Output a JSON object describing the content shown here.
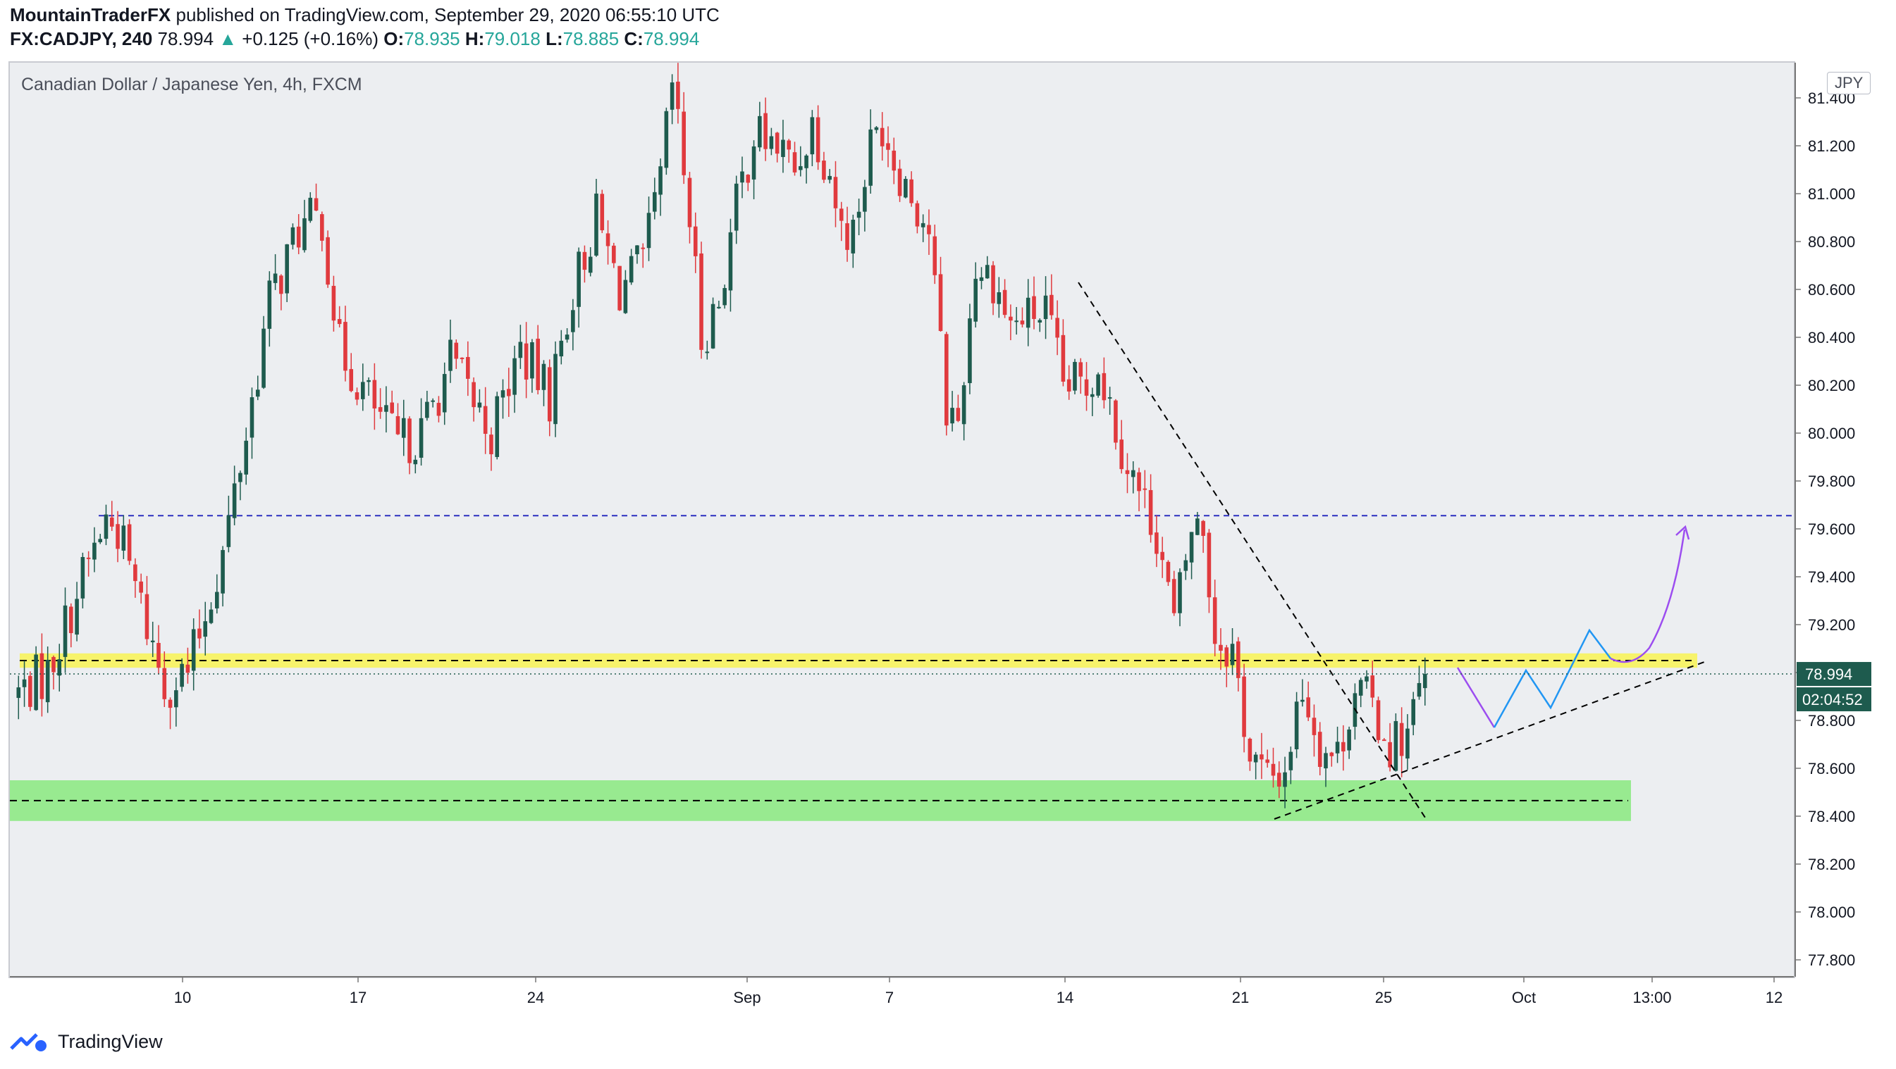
{
  "header": {
    "author": "MountainTraderFX",
    "published": "published on TradingView.com, September 29, 2020 06:55:10 UTC",
    "symbol": "FX:CADJPY, 240",
    "last": "78.994",
    "arrow": "▲",
    "change": "+0.125 (+0.16%)",
    "o_label": "O:",
    "o_val": "78.935",
    "h_label": "H:",
    "h_val": "79.018",
    "l_label": "L:",
    "l_val": "78.885",
    "c_label": "C:",
    "c_val": "78.994"
  },
  "pane": {
    "title": "Canadian Dollar / Japanese Yen, 4h, FXCM",
    "currency": "JPY",
    "price_badge": "78.994",
    "countdown_badge": "02:04:52"
  },
  "brand": {
    "name": "TradingView"
  },
  "colors": {
    "up": "#1e5b4e",
    "down": "#e03a3e",
    "yellow_zone": "#f7f36b",
    "green_zone": "#98ea90",
    "resistance_line": "#2b2fbf",
    "projection_purple": "#9c4df0",
    "projection_blue": "#2196f3",
    "badge_bg": "#1e5b4e"
  },
  "chart_data": {
    "type": "candlestick",
    "yaxis": {
      "range": [
        77.65,
        81.55
      ],
      "ticks": [
        "77.800",
        "78.000",
        "78.200",
        "78.400",
        "78.600",
        "78.800",
        "79.000",
        "79.200",
        "79.400",
        "79.600",
        "79.800",
        "80.000",
        "80.200",
        "80.400",
        "80.600",
        "80.800",
        "81.000",
        "81.200",
        "81.400"
      ]
    },
    "xaxis": {
      "ticks": [
        "10",
        "17",
        "24",
        "Sep",
        "7",
        "14",
        "21",
        "25",
        "Oct",
        "13:00",
        "12"
      ]
    },
    "anchors": [
      {
        "i": 0,
        "p": 78.9
      },
      {
        "i": 6,
        "p": 79.0
      },
      {
        "i": 12,
        "p": 79.4
      },
      {
        "i": 16,
        "p": 79.64
      },
      {
        "i": 18,
        "p": 79.6
      },
      {
        "i": 26,
        "p": 78.95
      },
      {
        "i": 30,
        "p": 79.0
      },
      {
        "i": 36,
        "p": 79.5
      },
      {
        "i": 40,
        "p": 80.0
      },
      {
        "i": 44,
        "p": 80.55
      },
      {
        "i": 49,
        "p": 80.85
      },
      {
        "i": 53,
        "p": 80.9
      },
      {
        "i": 56,
        "p": 80.35
      },
      {
        "i": 62,
        "p": 80.1
      },
      {
        "i": 66,
        "p": 79.95
      },
      {
        "i": 70,
        "p": 80.0
      },
      {
        "i": 75,
        "p": 80.3
      },
      {
        "i": 82,
        "p": 80.0
      },
      {
        "i": 87,
        "p": 80.35
      },
      {
        "i": 92,
        "p": 80.15
      },
      {
        "i": 96,
        "p": 80.6
      },
      {
        "i": 100,
        "p": 80.9
      },
      {
        "i": 104,
        "p": 80.6
      },
      {
        "i": 108,
        "p": 80.7
      },
      {
        "i": 111,
        "p": 81.05
      },
      {
        "i": 113,
        "p": 81.45
      },
      {
        "i": 116,
        "p": 80.9
      },
      {
        "i": 118,
        "p": 80.4
      },
      {
        "i": 121,
        "p": 80.55
      },
      {
        "i": 124,
        "p": 80.95
      },
      {
        "i": 127,
        "p": 81.25
      },
      {
        "i": 131,
        "p": 81.2
      },
      {
        "i": 134,
        "p": 81.1
      },
      {
        "i": 137,
        "p": 81.3
      },
      {
        "i": 140,
        "p": 81.1
      },
      {
        "i": 142,
        "p": 80.85
      },
      {
        "i": 144,
        "p": 80.85
      },
      {
        "i": 147,
        "p": 81.2
      },
      {
        "i": 149,
        "p": 81.3
      },
      {
        "i": 151,
        "p": 81.15
      },
      {
        "i": 154,
        "p": 81.0
      },
      {
        "i": 157,
        "p": 80.85
      },
      {
        "i": 160,
        "p": 80.1
      },
      {
        "i": 162,
        "p": 80.05
      },
      {
        "i": 165,
        "p": 80.7
      },
      {
        "i": 168,
        "p": 80.65
      },
      {
        "i": 171,
        "p": 80.45
      },
      {
        "i": 175,
        "p": 80.5
      },
      {
        "i": 177,
        "p": 80.5
      },
      {
        "i": 180,
        "p": 80.2
      },
      {
        "i": 184,
        "p": 80.2
      },
      {
        "i": 186,
        "p": 80.3
      },
      {
        "i": 190,
        "p": 79.95
      },
      {
        "i": 193,
        "p": 79.75
      },
      {
        "i": 196,
        "p": 79.6
      },
      {
        "i": 199,
        "p": 79.2
      },
      {
        "i": 202,
        "p": 79.6
      },
      {
        "i": 204,
        "p": 79.6
      },
      {
        "i": 206,
        "p": 79.15
      },
      {
        "i": 209,
        "p": 79.1
      },
      {
        "i": 212,
        "p": 78.65
      },
      {
        "i": 215,
        "p": 78.55
      },
      {
        "i": 218,
        "p": 78.6
      },
      {
        "i": 221,
        "p": 78.95
      },
      {
        "i": 224,
        "p": 78.7
      },
      {
        "i": 227,
        "p": 78.65
      },
      {
        "i": 230,
        "p": 78.95
      },
      {
        "i": 233,
        "p": 78.85
      },
      {
        "i": 236,
        "p": 78.7
      },
      {
        "i": 239,
        "p": 78.75
      },
      {
        "i": 242,
        "p": 78.99
      }
    ],
    "levels": [
      {
        "name": "resistance",
        "price": 79.655,
        "style": "dashed"
      },
      {
        "name": "yellow-zone",
        "from": 79.02,
        "to": 79.08
      },
      {
        "name": "green-zone",
        "from": 78.38,
        "to": 78.55
      },
      {
        "name": "green-zone-mid",
        "price": 78.465
      }
    ],
    "last_price": 78.994
  }
}
